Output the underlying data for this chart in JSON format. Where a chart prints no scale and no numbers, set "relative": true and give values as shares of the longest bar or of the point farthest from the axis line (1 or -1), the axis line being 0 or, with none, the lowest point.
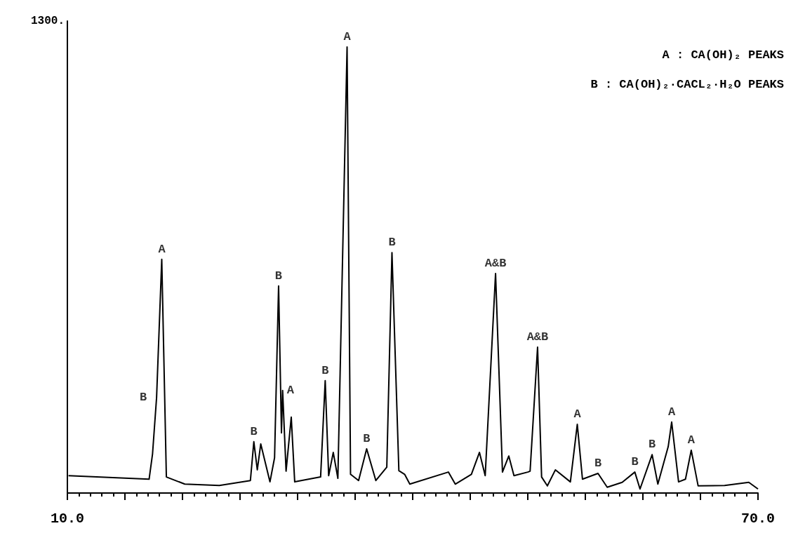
{
  "chart_data": {
    "type": "line",
    "relative": true,
    "ylabel": "1300.",
    "x": [
      10.1,
      17.1,
      17.4,
      17.75,
      18.2,
      18.6,
      20.2,
      23.2,
      25.9,
      26.2,
      26.5,
      26.8,
      27.6,
      28.0,
      28.35,
      28.6,
      28.7,
      29.0,
      29.45,
      29.75,
      32.0,
      32.4,
      32.7,
      33.1,
      33.5,
      34.3,
      34.6,
      35.3,
      36.0,
      36.8,
      37.75,
      38.2,
      38.8,
      39.3,
      39.75,
      43.1,
      43.7,
      45.1,
      45.8,
      46.3,
      47.2,
      47.8,
      48.35,
      48.8,
      50.0,
      50.2,
      50.85,
      51.2,
      51.7,
      52.4,
      53.7,
      54.3,
      54.75,
      56.1,
      56.9,
      58.2,
      59.3,
      59.75,
      60.8,
      61.3,
      62.2,
      62.5,
      63.1,
      63.7,
      64.2,
      64.8,
      67.1,
      69.2,
      70.0
    ],
    "series": [
      {
        "color": "#000000",
        "values": [
          0.039,
          0.031,
          0.088,
          0.214,
          0.524,
          0.036,
          0.02,
          0.017,
          0.028,
          0.115,
          0.052,
          0.11,
          0.025,
          0.079,
          0.464,
          0.135,
          0.23,
          0.049,
          0.17,
          0.025,
          0.036,
          0.252,
          0.039,
          0.091,
          0.033,
          1,
          0.042,
          0.028,
          0.099,
          0.028,
          0.058,
          0.539,
          0.05,
          0.042,
          0.02,
          0.047,
          0.02,
          0.042,
          0.091,
          0.039,
          0.492,
          0.047,
          0.083,
          0.039,
          0.047,
          0.049,
          0.327,
          0.036,
          0.016,
          0.052,
          0.025,
          0.154,
          0.031,
          0.044,
          0.013,
          0.024,
          0.047,
          0.009,
          0.086,
          0.02,
          0.104,
          0.159,
          0.025,
          0.031,
          0.096,
          0.016,
          0.017,
          0.024,
          0.009
        ]
      }
    ],
    "xlim": [
      10,
      70
    ],
    "xticks": [
      {
        "value": 10,
        "label": "10.0"
      },
      {
        "value": 15,
        "label": null
      },
      {
        "value": 20,
        "label": null
      },
      {
        "value": 25,
        "label": null
      },
      {
        "value": 30,
        "label": null
      },
      {
        "value": 35,
        "label": null
      },
      {
        "value": 40,
        "label": null
      },
      {
        "value": 45,
        "label": null
      },
      {
        "value": 50,
        "label": null
      },
      {
        "value": 55,
        "label": null
      },
      {
        "value": 60,
        "label": null
      },
      {
        "value": 65,
        "label": null
      },
      {
        "value": 70,
        "label": "70.0"
      }
    ],
    "grid": false,
    "annotations": [
      "A : CA(OH)₂ PEAKS",
      "B : CA(OH)₂·CACL₂·H₂O PEAKS",
      {
        "text": "B",
        "x": 17.75,
        "y": 0.214
      },
      {
        "text": "A",
        "x": 18.2,
        "y": 0.524
      },
      {
        "text": "B",
        "x": 26.2,
        "y": 0.115
      },
      {
        "text": "B",
        "x": 28.35,
        "y": 0.464
      },
      {
        "text": "A",
        "x": 28.7,
        "y": 0.23
      },
      {
        "text": "B",
        "x": 32.4,
        "y": 0.252
      },
      {
        "text": "A",
        "x": 34.3,
        "y": 1
      },
      {
        "text": "B",
        "x": 36.0,
        "y": 0.099
      },
      {
        "text": "B",
        "x": 38.2,
        "y": 0.539
      },
      {
        "text": "A&B",
        "x": 47.2,
        "y": 0.492
      },
      {
        "text": "A&B",
        "x": 50.85,
        "y": 0.327
      },
      {
        "text": "A",
        "x": 54.3,
        "y": 0.154
      },
      {
        "text": "B",
        "x": 56.1,
        "y": 0.044
      },
      {
        "text": "B",
        "x": 59.3,
        "y": 0.047
      },
      {
        "text": "B",
        "x": 60.8,
        "y": 0.086
      },
      {
        "text": "A",
        "x": 62.5,
        "y": 0.159
      },
      {
        "text": "A",
        "x": 64.2,
        "y": 0.096
      }
    ]
  }
}
